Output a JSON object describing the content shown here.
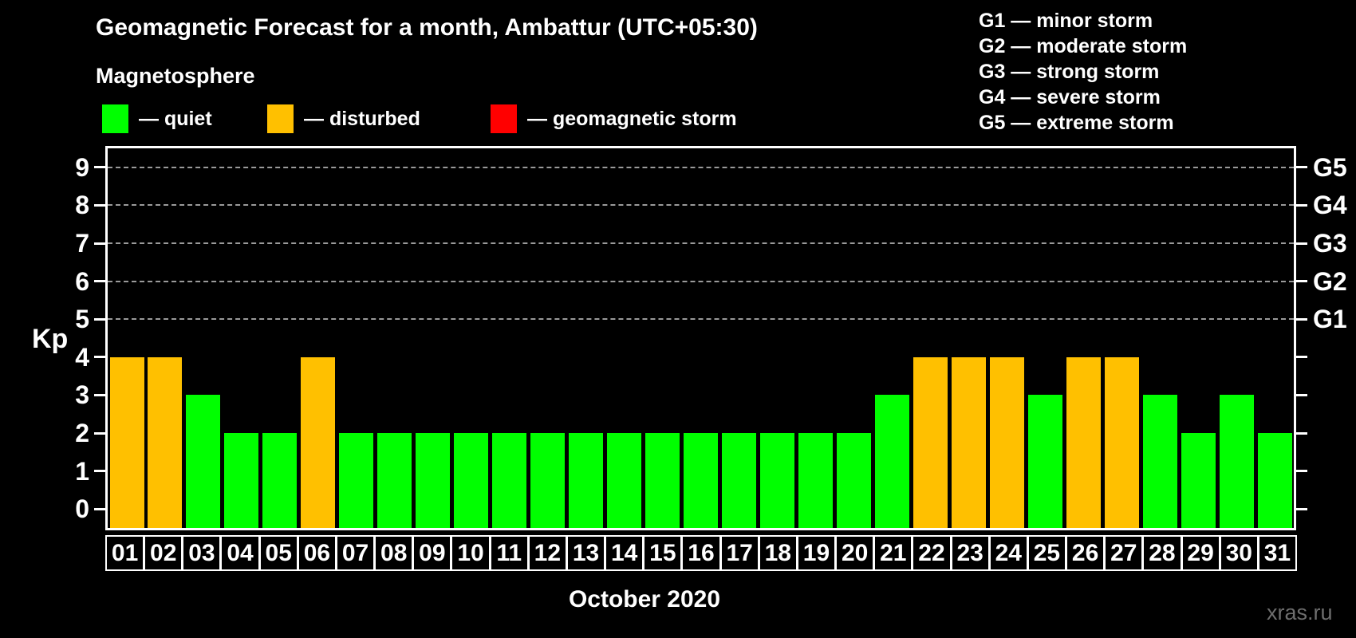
{
  "header": {
    "title": "Geomagnetic Forecast for a month, Ambattur (UTC+05:30)",
    "subtitle": "Magnetosphere",
    "watermark": "xras.ru"
  },
  "kp_legend": [
    {
      "key": "quiet",
      "label": "— quiet",
      "color": "#00ff00"
    },
    {
      "key": "disturbed",
      "label": "— disturbed",
      "color": "#ffc000"
    },
    {
      "key": "storm",
      "label": "— geomagnetic storm",
      "color": "#ff0000"
    }
  ],
  "g_legend": [
    "G1 — minor storm",
    "G2 — moderate storm",
    "G3 — strong storm",
    "G4 — severe storm",
    "G5 — extreme storm"
  ],
  "footer": {
    "month_label": "October 2020"
  },
  "chart_data": {
    "type": "bar",
    "title": "Geomagnetic Forecast for a month, Ambattur (UTC+05:30)",
    "xlabel": "October 2020",
    "ylabel": "Kp",
    "ylim": [
      -0.5,
      9.5
    ],
    "grid": "horizontal dashed lines at Kp 5,6,7,8,9",
    "legend_position": "top-left",
    "categories": [
      "01",
      "02",
      "03",
      "04",
      "05",
      "06",
      "07",
      "08",
      "09",
      "10",
      "11",
      "12",
      "13",
      "14",
      "15",
      "16",
      "17",
      "18",
      "19",
      "20",
      "21",
      "22",
      "23",
      "24",
      "25",
      "26",
      "27",
      "28",
      "29",
      "30",
      "31"
    ],
    "values": [
      4,
      4,
      3,
      2,
      2,
      4,
      2,
      2,
      2,
      2,
      2,
      2,
      2,
      2,
      2,
      2,
      2,
      2,
      2,
      2,
      3,
      4,
      4,
      4,
      3,
      4,
      4,
      3,
      2,
      3,
      2
    ],
    "statuses": [
      "disturbed",
      "disturbed",
      "quiet",
      "quiet",
      "quiet",
      "disturbed",
      "quiet",
      "quiet",
      "quiet",
      "quiet",
      "quiet",
      "quiet",
      "quiet",
      "quiet",
      "quiet",
      "quiet",
      "quiet",
      "quiet",
      "quiet",
      "quiet",
      "quiet",
      "disturbed",
      "disturbed",
      "disturbed",
      "quiet",
      "disturbed",
      "disturbed",
      "quiet",
      "quiet",
      "quiet",
      "quiet"
    ],
    "status_colors": {
      "quiet": "#00ff00",
      "disturbed": "#ffc000",
      "storm": "#ff0000"
    },
    "left_ticks": [
      "0",
      "1",
      "2",
      "3",
      "4",
      "5",
      "6",
      "7",
      "8",
      "9"
    ],
    "gridline_values": [
      5,
      6,
      7,
      8,
      9
    ],
    "right_axis": [
      {
        "label": "G1",
        "kp": 5
      },
      {
        "label": "G2",
        "kp": 6
      },
      {
        "label": "G3",
        "kp": 7
      },
      {
        "label": "G4",
        "kp": 8
      },
      {
        "label": "G5",
        "kp": 9
      }
    ]
  }
}
